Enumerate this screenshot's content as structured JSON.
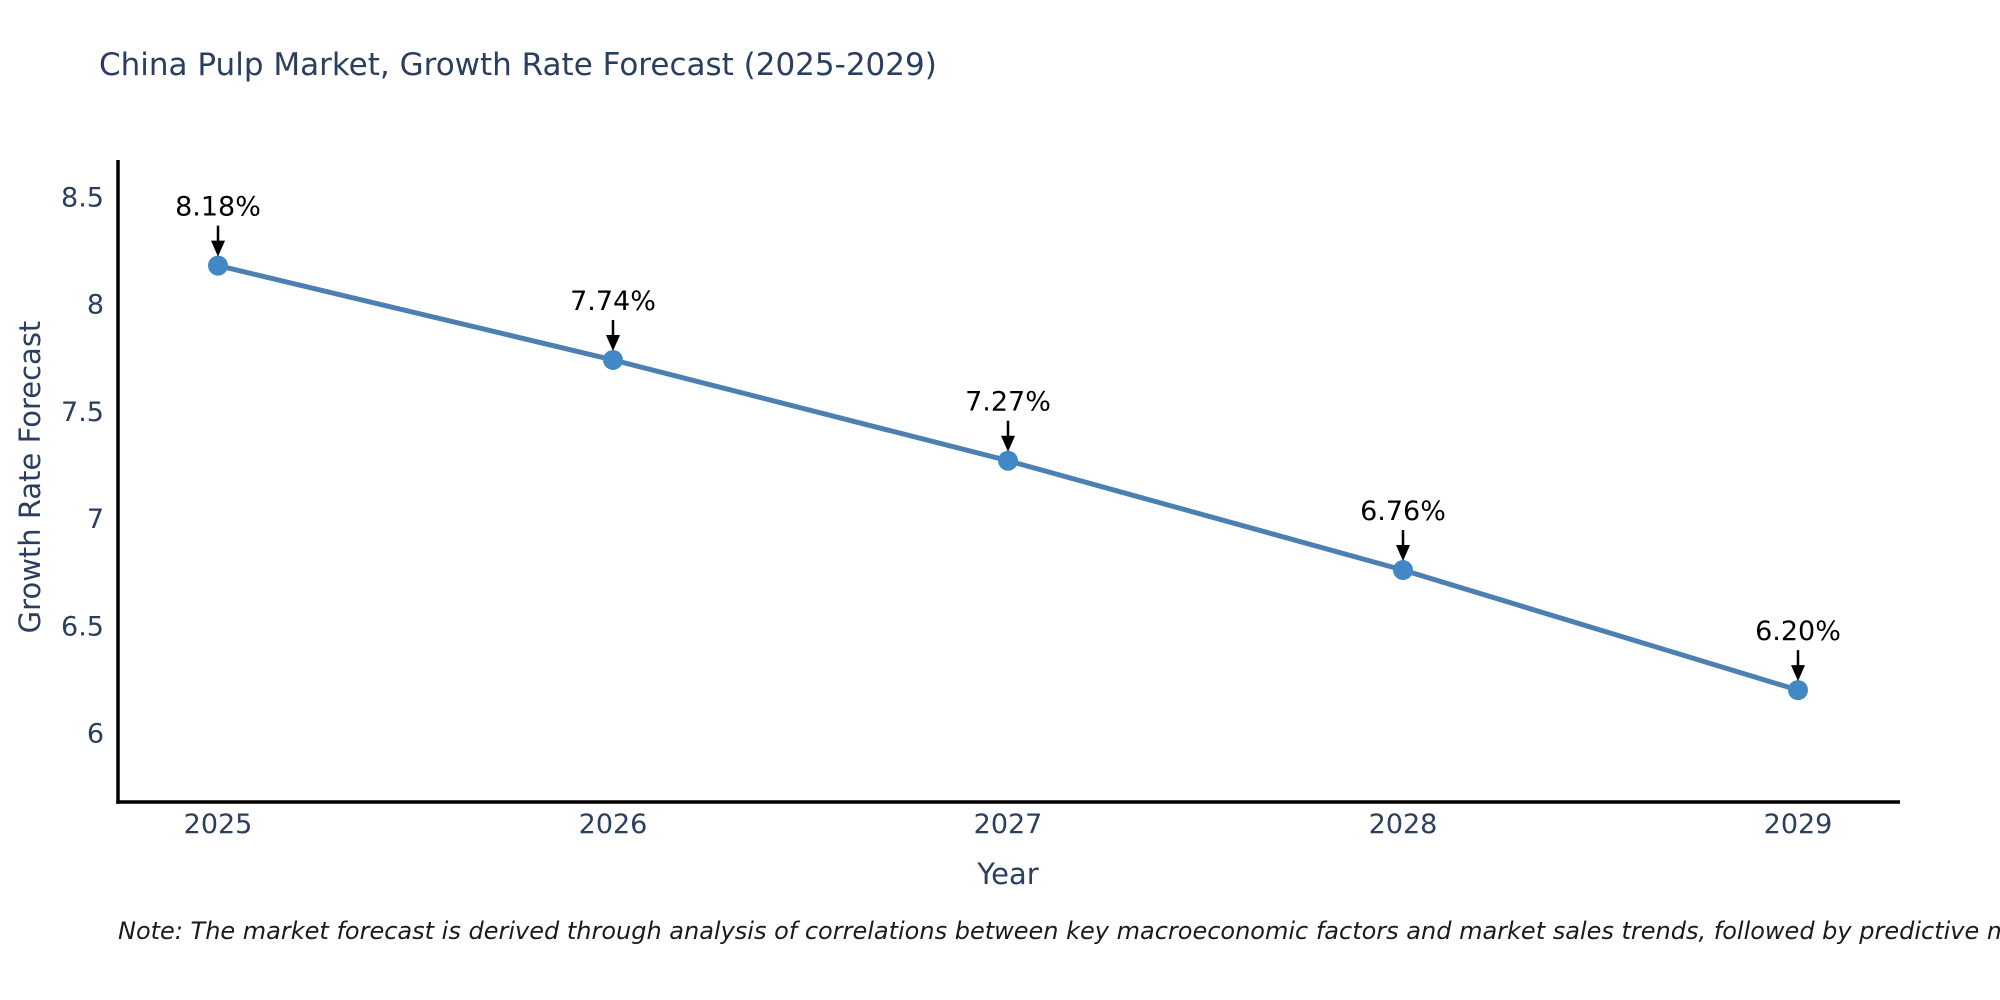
{
  "page": {
    "background": "#ffffff"
  },
  "chart_data": {
    "type": "line",
    "title": "China Pulp Market, Growth Rate Forecast (2025-2029)",
    "xlabel": "Year",
    "ylabel": "Growth Rate Forecast",
    "categories": [
      "2025",
      "2026",
      "2027",
      "2028",
      "2029"
    ],
    "series": [
      {
        "name": "Growth Rate Forecast",
        "values": [
          8.18,
          7.74,
          7.27,
          6.76,
          6.2
        ]
      }
    ],
    "point_labels": [
      "8.18%",
      "7.74%",
      "7.27%",
      "6.76%",
      "6.20%"
    ],
    "ytick_values": [
      8.5,
      8,
      7.5,
      7,
      6.5,
      6
    ],
    "ytick_labels": [
      "8.5",
      "8",
      "7.5",
      "7",
      "6.5",
      "6"
    ],
    "ylim": [
      5.68,
      8.67
    ],
    "grid": false,
    "legend": false,
    "annotations_have_arrows": true,
    "colors": {
      "line": "#4C80B0",
      "marker": "#4189C4",
      "axis": "#000000",
      "tick_text": "#2a3f5f",
      "annotation_text": "#000000",
      "arrow": "#000000"
    }
  },
  "note": {
    "text": "Note: The market forecast is derived through analysis of correlations between key macroeconomic factors and market sales trends, followed by predictive modeling to project future sales"
  }
}
